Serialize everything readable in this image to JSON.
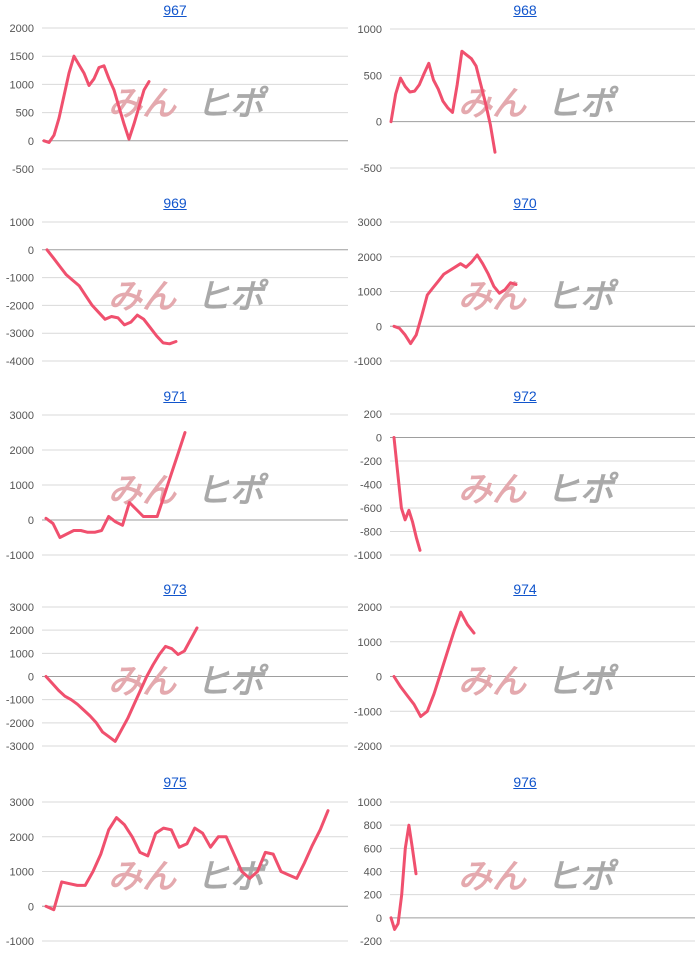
{
  "chart_data": [
    {
      "type": "line",
      "title": "967",
      "yticks": [
        2000,
        1500,
        1000,
        500,
        0,
        -500
      ],
      "ylim": [
        -500,
        2000
      ],
      "series": [
        {
          "values": [
            0,
            -30,
            100,
            400,
            800,
            1200,
            1500,
            1350,
            1200,
            980,
            1100,
            1300,
            1330,
            1100,
            900,
            600,
            300,
            30,
            300,
            600,
            900,
            1050
          ]
        }
      ]
    },
    {
      "type": "line",
      "title": "968",
      "yticks": [
        1000,
        500,
        0,
        -500
      ],
      "ylim": [
        -500,
        1000
      ],
      "series": [
        {
          "values": [
            0,
            300,
            470,
            380,
            320,
            330,
            400,
            520,
            630,
            450,
            350,
            220,
            150,
            100,
            400,
            760,
            720,
            680,
            600,
            400,
            200,
            -30,
            -330
          ]
        }
      ]
    },
    {
      "type": "line",
      "title": "969",
      "yticks": [
        1000,
        0,
        -1000,
        -2000,
        -3000,
        -4000
      ],
      "ylim": [
        -4000,
        1000
      ],
      "series": [
        {
          "values": [
            0,
            -300,
            -600,
            -900,
            -1100,
            -1300,
            -1650,
            -2000,
            -2250,
            -2500,
            -2400,
            -2450,
            -2700,
            -2600,
            -2350,
            -2500,
            -2800,
            -3100,
            -3350,
            -3380,
            -3300
          ]
        }
      ]
    },
    {
      "type": "line",
      "title": "970",
      "yticks": [
        3000,
        2000,
        1000,
        0,
        -1000
      ],
      "ylim": [
        -1000,
        3000
      ],
      "series": [
        {
          "values": [
            0,
            -60,
            -250,
            -500,
            -250,
            300,
            900,
            1100,
            1300,
            1500,
            1600,
            1700,
            1800,
            1700,
            1850,
            2050,
            1800,
            1500,
            1150,
            950,
            1050,
            1250,
            1200
          ]
        }
      ]
    },
    {
      "type": "line",
      "title": "971",
      "yticks": [
        3000,
        2000,
        1000,
        0,
        -1000
      ],
      "ylim": [
        -1000,
        3000
      ],
      "series": [
        {
          "values": [
            50,
            -100,
            -500,
            -400,
            -300,
            -300,
            -350,
            -350,
            -300,
            100,
            -50,
            -150,
            500,
            300,
            100,
            100,
            100,
            700,
            1300,
            1900,
            2500
          ]
        }
      ]
    },
    {
      "type": "line",
      "title": "972",
      "yticks": [
        200,
        0,
        -200,
        -400,
        -600,
        -800,
        -1000
      ],
      "ylim": [
        -1000,
        200
      ],
      "series": [
        {
          "values": [
            0,
            -300,
            -600,
            -700,
            -620,
            -720,
            -850,
            -960
          ]
        }
      ]
    },
    {
      "type": "line",
      "title": "973",
      "yticks": [
        3000,
        2000,
        1000,
        0,
        -1000,
        -2000,
        -3000
      ],
      "ylim": [
        -3000,
        3000
      ],
      "series": [
        {
          "values": [
            0,
            -300,
            -600,
            -850,
            -1000,
            -1200,
            -1450,
            -1700,
            -2000,
            -2400,
            -2600,
            -2800,
            -2300,
            -1800,
            -1200,
            -600,
            0,
            500,
            950,
            1300,
            1200,
            950,
            1100,
            1600,
            2100
          ]
        }
      ]
    },
    {
      "type": "line",
      "title": "974",
      "yticks": [
        2000,
        1000,
        0,
        -1000,
        -2000
      ],
      "ylim": [
        -2000,
        2000
      ],
      "series": [
        {
          "values": [
            0,
            -300,
            -550,
            -800,
            -1150,
            -1000,
            -500,
            100,
            700,
            1300,
            1850,
            1500,
            1250
          ]
        }
      ]
    },
    {
      "type": "line",
      "title": "975",
      "yticks": [
        3000,
        2000,
        1000,
        0,
        -1000
      ],
      "ylim": [
        -1000,
        3000
      ],
      "series": [
        {
          "values": [
            0,
            -100,
            700,
            650,
            600,
            600,
            1000,
            1500,
            2200,
            2550,
            2350,
            2000,
            1550,
            1450,
            2100,
            2250,
            2200,
            1700,
            1800,
            2250,
            2100,
            1700,
            2000,
            2000,
            1500,
            1000,
            800,
            1000,
            1550,
            1500,
            1000,
            900,
            800,
            1250,
            1750,
            2200,
            2750
          ]
        }
      ]
    },
    {
      "type": "line",
      "title": "976",
      "yticks": [
        1000,
        800,
        600,
        400,
        200,
        0,
        -200
      ],
      "ylim": [
        -200,
        1000
      ],
      "series": [
        {
          "values": [
            0,
            -100,
            -50,
            200,
            600,
            800,
            600,
            380
          ]
        }
      ]
    }
  ],
  "watermark": {
    "left": "みん",
    "right": "ヒポ",
    "left_color": "#e4a9ae",
    "right_color": "#a9a9a9"
  },
  "colors": {
    "line": "#f0506e",
    "grid": "#d9d9d9",
    "zero": "#9e9e9e",
    "title": "#1155cc"
  }
}
